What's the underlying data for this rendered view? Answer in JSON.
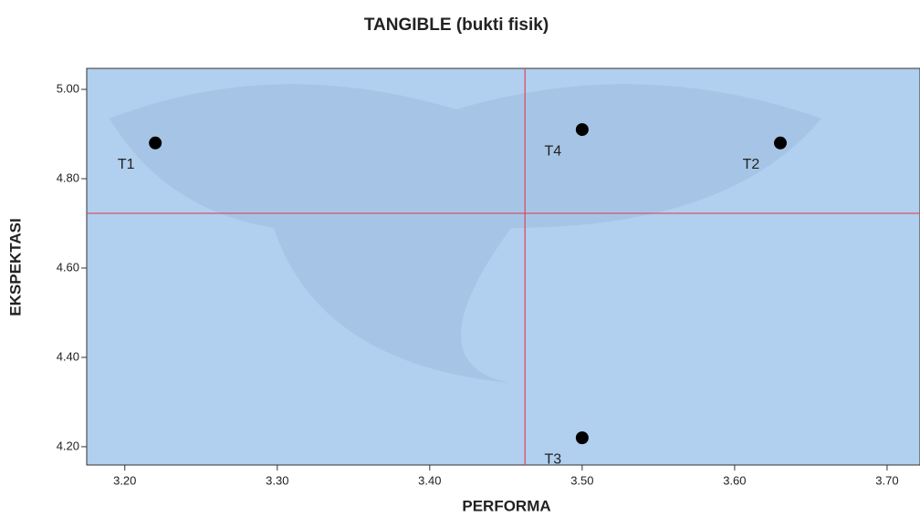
{
  "chart_data": {
    "type": "scatter",
    "title": "TANGIBLE (bukti fisik)",
    "x_label": "PERFORMA",
    "y_label": "EKSPEKTASI",
    "x": [
      3.22,
      3.63,
      3.5,
      3.5
    ],
    "values": [
      4.88,
      4.88,
      4.22,
      4.91
    ],
    "point_labels": [
      "T1",
      "T2",
      "T3",
      "T4"
    ],
    "color": "#000000",
    "reference_lines": {
      "x": 3.4625,
      "y": 4.7225,
      "color": "#d9485a"
    },
    "xlim": [
      3.175,
      3.7216
    ],
    "ylim": [
      4.159,
      5.047
    ],
    "xticks": [
      {
        "value": 3.2,
        "label": "3.20"
      },
      {
        "value": 3.3,
        "label": "3.30"
      },
      {
        "value": 3.4,
        "label": "3.40"
      },
      {
        "value": 3.5,
        "label": "3.50"
      },
      {
        "value": 3.6,
        "label": "3.60"
      },
      {
        "value": 3.7,
        "label": "3.70"
      }
    ],
    "yticks": [
      {
        "value": 4.2,
        "label": "4.20"
      },
      {
        "value": 4.4,
        "label": "4.40"
      },
      {
        "value": 4.6,
        "label": "4.60"
      },
      {
        "value": 4.8,
        "label": "4.80"
      },
      {
        "value": 5,
        "label": "5.00"
      }
    ]
  }
}
